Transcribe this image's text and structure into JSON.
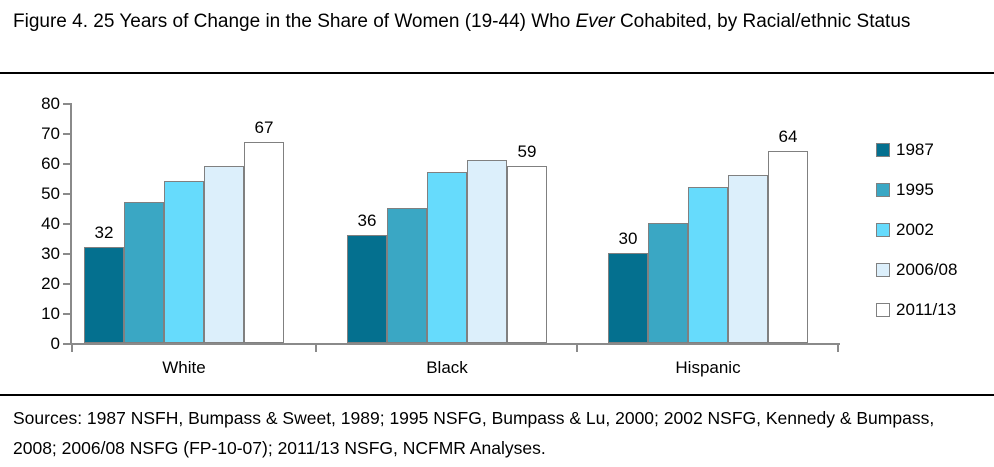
{
  "title": {
    "prefix": "Figure 4. 25 Years of Change in the Share of Women (19-44) Who ",
    "italic": "Ever",
    "suffix": " Cohabited, by Racial/ethnic Status"
  },
  "sources": "Sources: 1987 NSFH, Bumpass & Sweet, 1989; 1995 NSFG, Bumpass & Lu, 2000; 2002 NSFG, Kennedy & Bumpass, 2008; 2006/08 NSFG (FP-10-07); 2011/13 NSFG, NCFMR Analyses.",
  "colors": {
    "axis": "#8a8a8a",
    "bar_border": "#808080",
    "text": "#000000"
  },
  "chart_data": {
    "type": "bar",
    "title": "Figure 4. 25 Years of Change in the Share of Women (19-44) Who Ever Cohabited, by Racial/ethnic Status",
    "categories": [
      "White",
      "Black",
      "Hispanic"
    ],
    "series": [
      {
        "name": "1987",
        "color": "#04708f",
        "values": [
          32,
          36,
          30
        ],
        "show_value_labels": true
      },
      {
        "name": "1995",
        "color": "#3aa7c4",
        "values": [
          47,
          45,
          40
        ],
        "show_value_labels": false
      },
      {
        "name": "2002",
        "color": "#66dbfc",
        "values": [
          54,
          57,
          52
        ],
        "show_value_labels": false
      },
      {
        "name": "2006/08",
        "color": "#dceffb",
        "values": [
          59,
          61,
          56
        ],
        "show_value_labels": false
      },
      {
        "name": "2011/13",
        "color": "#ffffff",
        "values": [
          67,
          59,
          64
        ],
        "show_value_labels": true
      }
    ],
    "xlabel": "",
    "ylabel": "",
    "ylim": [
      0,
      80
    ],
    "ytick_step": 10,
    "grid": false,
    "legend_position": "right"
  }
}
